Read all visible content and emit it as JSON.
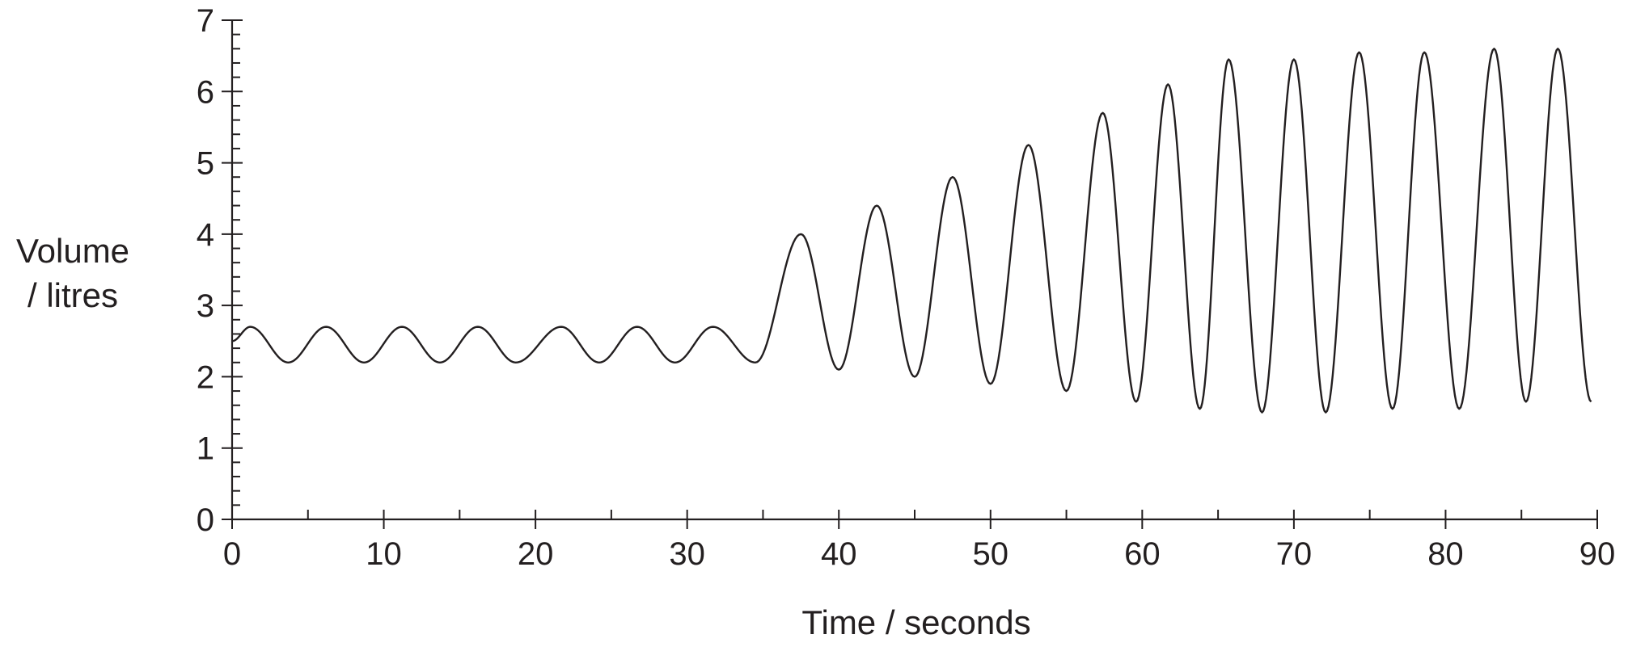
{
  "chart_data": {
    "type": "line",
    "title": "",
    "xlabel": "Time / seconds",
    "ylabel_lines": [
      "Volume",
      "/ litres"
    ],
    "xlim": [
      0,
      90
    ],
    "ylim": [
      0,
      7
    ],
    "x_major_ticks": [
      0,
      10,
      20,
      30,
      40,
      50,
      60,
      70,
      80,
      90
    ],
    "x_minor_step": 5,
    "y_major_ticks": [
      0,
      1,
      2,
      3,
      4,
      5,
      6,
      7
    ],
    "y_minor_step": 0.2,
    "grid": false,
    "legend": "none",
    "series": [
      {
        "x": [
          0,
          1.2,
          3.7,
          6.2,
          8.7,
          11.2,
          13.7,
          16.2,
          18.7,
          21.7,
          24.2,
          26.7,
          29.2,
          31.7,
          34.5,
          37.5,
          40.0,
          42.5,
          45.0,
          47.5,
          50.0,
          52.5,
          55.0,
          57.4,
          59.6,
          61.7,
          63.8,
          65.7,
          67.9,
          70.0,
          72.1,
          74.3,
          76.5,
          78.6,
          80.9,
          83.2,
          85.3,
          87.4,
          89.6
        ],
        "y": [
          2.5,
          2.7,
          2.2,
          2.7,
          2.2,
          2.7,
          2.2,
          2.7,
          2.2,
          2.7,
          2.2,
          2.7,
          2.2,
          2.7,
          2.2,
          4.0,
          2.1,
          4.4,
          2.0,
          4.8,
          1.9,
          5.25,
          1.8,
          5.7,
          1.65,
          6.1,
          1.55,
          6.45,
          1.5,
          6.45,
          1.5,
          6.55,
          1.55,
          6.55,
          1.55,
          6.6,
          1.65,
          6.6,
          1.65
        ]
      }
    ]
  }
}
